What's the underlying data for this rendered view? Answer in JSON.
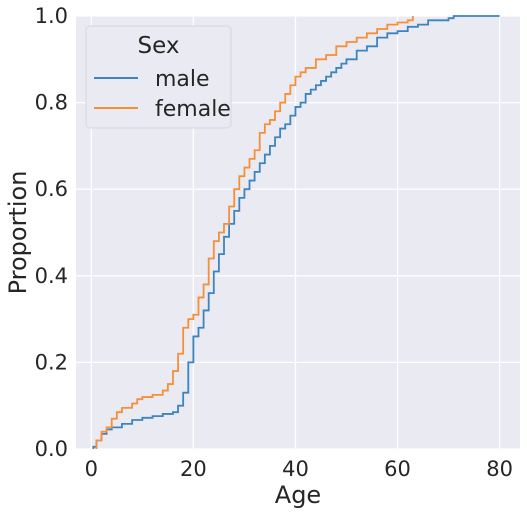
{
  "chart_data": {
    "type": "line",
    "subtype": "ecdf-step",
    "xlabel": "Age",
    "ylabel": "Proportion",
    "xlim": [
      -3,
      84
    ],
    "ylim": [
      0,
      1
    ],
    "xticks": [
      0,
      20,
      40,
      60,
      80
    ],
    "yticks": [
      0.0,
      0.2,
      0.4,
      0.6,
      0.8,
      1.0
    ],
    "xtick_labels": [
      "0",
      "20",
      "40",
      "60",
      "80"
    ],
    "ytick_labels": [
      "0.0",
      "0.2",
      "0.4",
      "0.6",
      "0.8",
      "1.0"
    ],
    "grid": true,
    "legend": {
      "title": "Sex",
      "placement": "top-left"
    },
    "colors": {
      "background": "#eaeaf2",
      "grid": "#ffffff",
      "male": "#3c84bf",
      "female": "#f68f38"
    },
    "series": [
      {
        "name": "male",
        "x": [
          0.4,
          1,
          2,
          3,
          4,
          6,
          8,
          10,
          12,
          14,
          16,
          17,
          18,
          19,
          20,
          21,
          22,
          23,
          24,
          25,
          26,
          27,
          28,
          29,
          30,
          31,
          32,
          33,
          34,
          35,
          36,
          37,
          38,
          39,
          40,
          41,
          42,
          43,
          44,
          45,
          46,
          47,
          48,
          49,
          50,
          52,
          54,
          56,
          58,
          60,
          62,
          64,
          66,
          70,
          71,
          74,
          80
        ],
        "y": [
          0.005,
          0.02,
          0.035,
          0.045,
          0.05,
          0.058,
          0.067,
          0.072,
          0.076,
          0.081,
          0.085,
          0.1,
          0.13,
          0.2,
          0.26,
          0.28,
          0.32,
          0.36,
          0.41,
          0.45,
          0.49,
          0.52,
          0.55,
          0.58,
          0.6,
          0.62,
          0.64,
          0.66,
          0.68,
          0.7,
          0.72,
          0.74,
          0.75,
          0.77,
          0.79,
          0.8,
          0.82,
          0.83,
          0.84,
          0.85,
          0.86,
          0.87,
          0.88,
          0.89,
          0.9,
          0.92,
          0.93,
          0.95,
          0.96,
          0.965,
          0.975,
          0.98,
          0.99,
          0.995,
          1.0,
          1.0,
          1.0
        ]
      },
      {
        "name": "female",
        "x": [
          1,
          2,
          3,
          4,
          5,
          6,
          8,
          9,
          10,
          12,
          14,
          15,
          16,
          17,
          18,
          19,
          20,
          21,
          22,
          23,
          24,
          25,
          26,
          27,
          28,
          29,
          30,
          31,
          32,
          33,
          34,
          35,
          36,
          37,
          38,
          39,
          40,
          41,
          42,
          44,
          46,
          48,
          50,
          52,
          54,
          56,
          58,
          60,
          62,
          63
        ],
        "y": [
          0.02,
          0.04,
          0.05,
          0.07,
          0.085,
          0.095,
          0.105,
          0.115,
          0.12,
          0.125,
          0.135,
          0.15,
          0.18,
          0.22,
          0.28,
          0.3,
          0.31,
          0.35,
          0.38,
          0.44,
          0.48,
          0.5,
          0.52,
          0.56,
          0.6,
          0.63,
          0.65,
          0.67,
          0.69,
          0.73,
          0.75,
          0.76,
          0.78,
          0.8,
          0.82,
          0.84,
          0.86,
          0.87,
          0.88,
          0.9,
          0.91,
          0.93,
          0.94,
          0.95,
          0.96,
          0.97,
          0.98,
          0.985,
          0.99,
          1.0
        ]
      }
    ]
  }
}
